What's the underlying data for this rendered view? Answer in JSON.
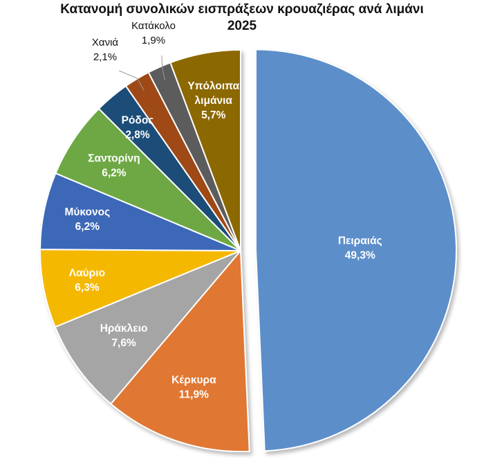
{
  "chart_data": {
    "type": "pie",
    "title": "Κατανομή συνολικών εισπράξεων κρουαζιέρας ανά λιμάνι 2025",
    "title_lines": [
      "Κατανομή συνολικών εισπράξεων κρουαζιέρας ανά λιμάνι",
      "2025"
    ],
    "unit": "%",
    "slices": [
      {
        "label": "Πειραιάς",
        "value": 49.3,
        "value_text": "49,3%",
        "color": "#5B8ECA",
        "text_color": "#ffffff"
      },
      {
        "label": "Κέρκυρα",
        "value": 11.9,
        "value_text": "11,9%",
        "color": "#E07730",
        "text_color": "#ffffff"
      },
      {
        "label": "Ηράκλειο",
        "value": 7.6,
        "value_text": "7,6%",
        "color": "#A5A5A5",
        "text_color": "#ffffff"
      },
      {
        "label": "Λαύριο",
        "value": 6.3,
        "value_text": "6,3%",
        "color": "#F5B800",
        "text_color": "#ffffff"
      },
      {
        "label": "Μύκονος",
        "value": 6.2,
        "value_text": "6,2%",
        "color": "#3E67B8",
        "text_color": "#ffffff"
      },
      {
        "label": "Σαντορίνη",
        "value": 6.2,
        "value_text": "6,2%",
        "color": "#6EA845",
        "text_color": "#ffffff"
      },
      {
        "label": "Ρόδος",
        "value": 2.8,
        "value_text": "2,8%",
        "color": "#1F4E79",
        "text_color": "#ffffff"
      },
      {
        "label": "Χανιά",
        "value": 2.1,
        "value_text": "2,1%",
        "color": "#9E4813",
        "text_color": "#111111",
        "label_outside": true
      },
      {
        "label": "Κατάκολο",
        "value": 1.9,
        "value_text": "1,9%",
        "color": "#5C5C5C",
        "text_color": "#111111",
        "label_outside": true
      },
      {
        "label": "Υπόλοιπα λιμάνια",
        "label_lines": [
          "Υπόλοιπα",
          "λιμάνια"
        ],
        "value": 5.7,
        "value_text": "5,7%",
        "color": "#8C6700",
        "text_color": "#ffffff"
      }
    ],
    "legend": false
  }
}
